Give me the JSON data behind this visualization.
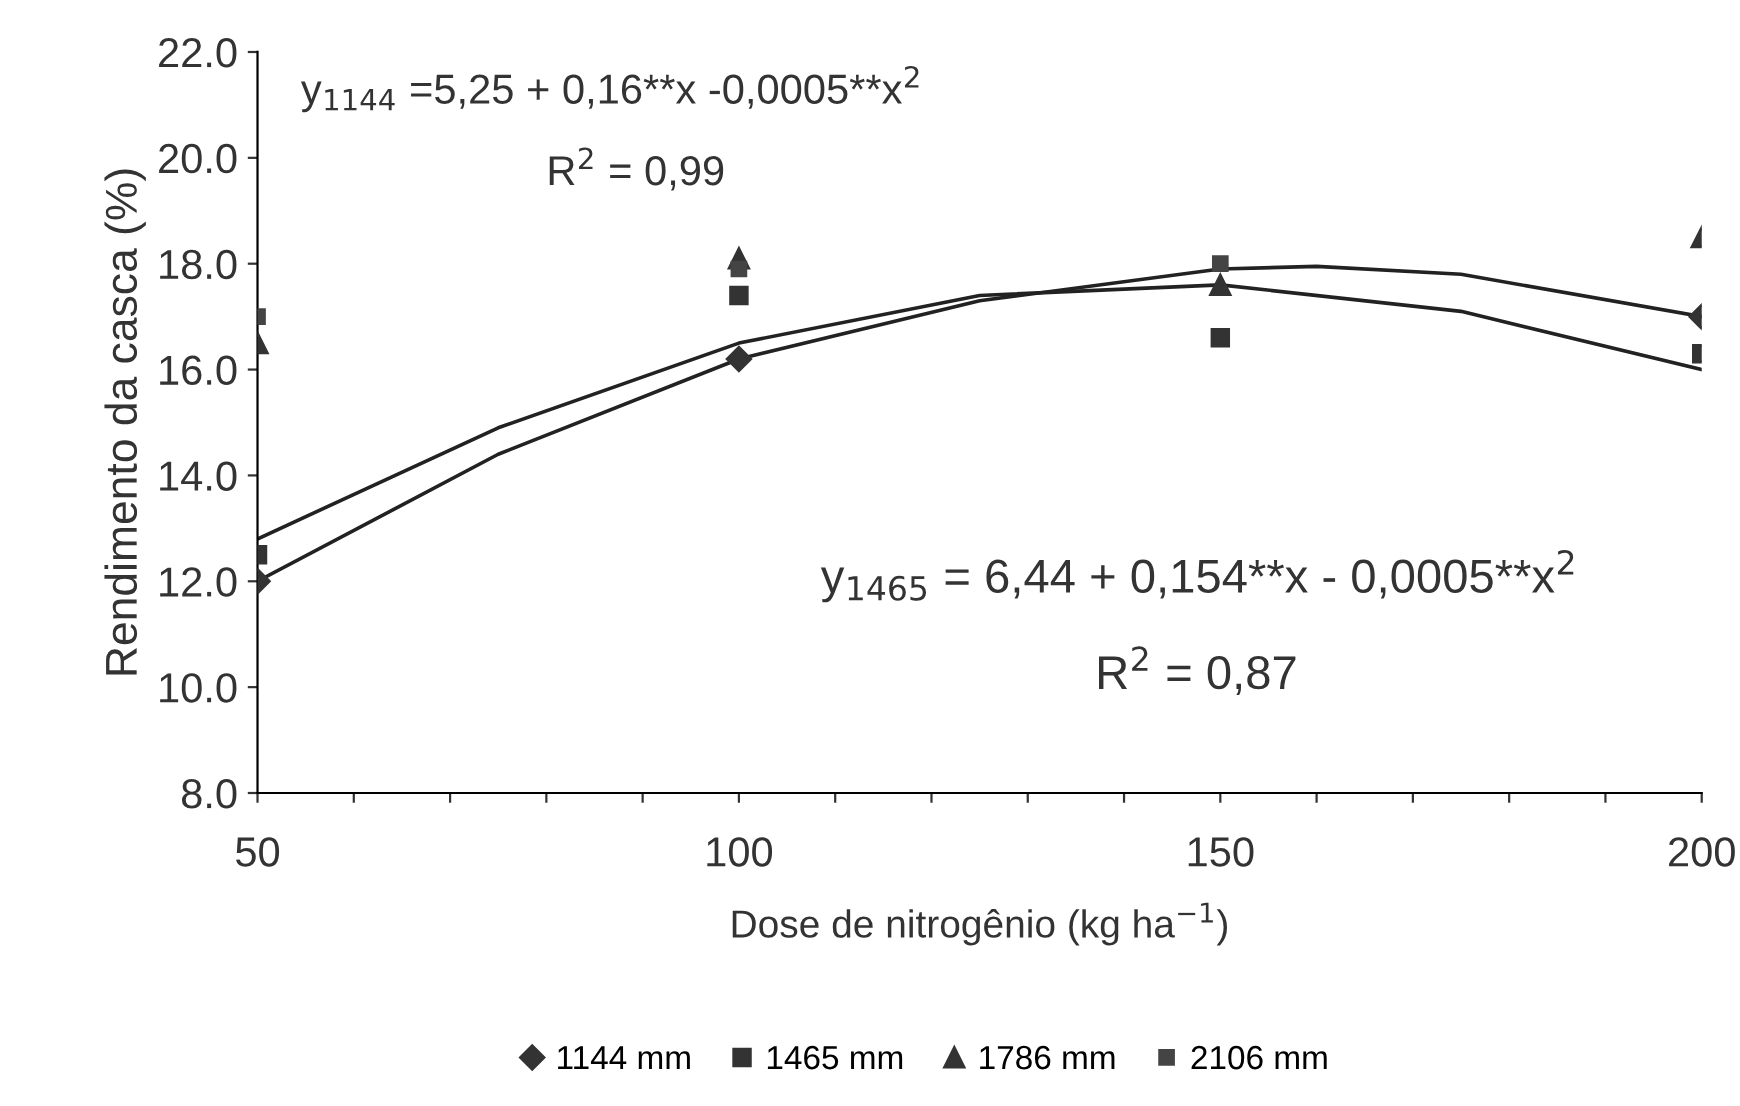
{
  "chart_data": {
    "type": "scatter",
    "xlabel": "Dose de nitrogênio (kg ha$^{−1}$)",
    "ylabel": "Rendimento da casca (%)",
    "x": [
      50,
      100,
      150,
      200
    ],
    "series": [
      {
        "name": "1144 mm",
        "color": "#333333",
        "marker": "diamond",
        "values": [
          12.0,
          16.2,
          null,
          17.0
        ]
      },
      {
        "name": "1465 mm",
        "color": "#333333",
        "marker": "square",
        "values": [
          12.5,
          17.4,
          16.6,
          16.3
        ]
      },
      {
        "name": "1786 mm",
        "color": "#333333",
        "marker": "triangle",
        "values": [
          16.5,
          18.1,
          17.6,
          18.5
        ]
      },
      {
        "name": "2106 mm",
        "color": "#444444",
        "marker": "square",
        "values": [
          17.0,
          17.9,
          18.0,
          null
        ]
      },
      {
        "type": "line",
        "color": "#222222",
        "marker": "none",
        "x": [
          50,
          75,
          100,
          125,
          150,
          160,
          175,
          200
        ],
        "values": [
          12.0,
          14.4,
          16.2,
          17.3,
          17.9,
          17.95,
          17.8,
          17.0
        ]
      },
      {
        "type": "line",
        "color": "#222222",
        "marker": "none",
        "x": [
          50,
          75,
          100,
          125,
          150,
          175,
          200
        ],
        "values": [
          12.8,
          14.9,
          16.5,
          17.4,
          17.6,
          17.1,
          16.0
        ]
      }
    ],
    "xlim": [
      50,
      200
    ],
    "xticks": [
      50,
      {
        "value": 60,
        "label": null
      },
      {
        "value": 70,
        "label": null
      },
      {
        "value": 80,
        "label": null
      },
      {
        "value": 90,
        "label": null
      },
      100,
      {
        "value": 110,
        "label": null
      },
      {
        "value": 120,
        "label": null
      },
      {
        "value": 130,
        "label": null
      },
      {
        "value": 140,
        "label": null
      },
      150,
      {
        "value": 160,
        "label": null
      },
      {
        "value": 170,
        "label": null
      },
      {
        "value": 180,
        "label": null
      },
      {
        "value": 190,
        "label": null
      },
      200
    ],
    "ylim": [
      8,
      22
    ],
    "yticks": [
      {
        "value": 8,
        "label": "8.0"
      },
      {
        "value": 10,
        "label": "10.0"
      },
      {
        "value": 12,
        "label": "12.0"
      },
      {
        "value": 14,
        "label": "14.0"
      },
      {
        "value": 16,
        "label": "16.0"
      },
      {
        "value": 18,
        "label": "18.0"
      },
      {
        "value": 20,
        "label": "20.0"
      },
      {
        "value": 22,
        "label": "22.0"
      }
    ],
    "annotations": [
      "y$_{1144}$ =5,25 + 0,16**x -0,0005**x$^{2}$",
      "R$^{2}$ = 0,99",
      "y$_{1465}$ = 6,44 + 0,154**x - 0,0005**x$^{2}$",
      "R$^{2}$ = 0,87"
    ],
    "grid": false,
    "legend": "bottom",
    "line_style": "solid"
  }
}
